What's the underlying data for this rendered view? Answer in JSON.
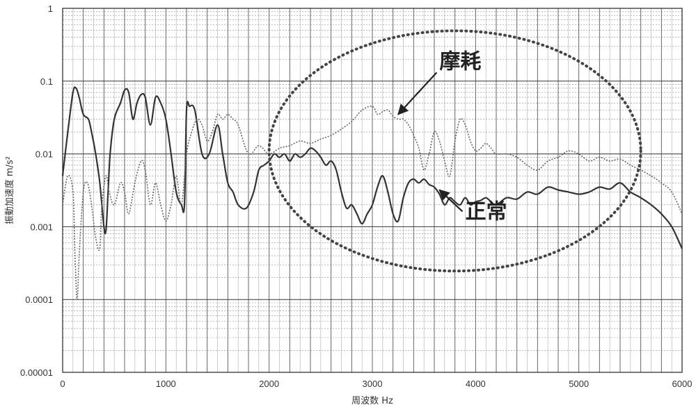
{
  "chart_data": {
    "type": "line",
    "xlabel": "周波数 Hz",
    "ylabel": "振動加速度 m/s²",
    "xlim": [
      0,
      6000
    ],
    "ylim": [
      1e-05,
      1
    ],
    "yscale": "log",
    "grid": true,
    "x_ticks": [
      "0",
      "1000",
      "2000",
      "3000",
      "4000",
      "5000",
      "6000"
    ],
    "y_ticks": [
      "0.00001",
      "0.0001",
      "0.001",
      "0.01",
      "0.1",
      "1"
    ],
    "annotations": [
      {
        "text": "摩耗",
        "target_series": "摩耗",
        "text_x": 3650,
        "text_y": 0.15,
        "arrow_x": 3250,
        "arrow_y": 0.035
      },
      {
        "text": "正常",
        "target_series": "正常",
        "text_x": 3900,
        "text_y": 0.0013,
        "arrow_x": 3650,
        "arrow_y": 0.0032
      }
    ],
    "highlight_ellipse": {
      "cx": 3800,
      "cy": 0.011,
      "rx": 1800,
      "ry_decades": 1.65
    },
    "series": [
      {
        "name": "正常",
        "style": "solid",
        "color": "#333333",
        "x": [
          0,
          50,
          100,
          130,
          160,
          200,
          250,
          280,
          320,
          360,
          400,
          420,
          440,
          460,
          500,
          560,
          600,
          640,
          680,
          720,
          760,
          800,
          850,
          900,
          950,
          1000,
          1050,
          1100,
          1150,
          1180,
          1200,
          1230,
          1280,
          1350,
          1420,
          1500,
          1550,
          1600,
          1650,
          1700,
          1780,
          1850,
          1900,
          1950,
          2000,
          2050,
          2100,
          2150,
          2200,
          2250,
          2300,
          2350,
          2400,
          2450,
          2500,
          2550,
          2600,
          2650,
          2700,
          2750,
          2800,
          2850,
          2900,
          2950,
          3000,
          3050,
          3100,
          3150,
          3200,
          3250,
          3300,
          3350,
          3400,
          3450,
          3500,
          3550,
          3600,
          3650,
          3700,
          3750,
          3800,
          3850,
          3900,
          3950,
          4000,
          4050,
          4100,
          4150,
          4200,
          4300,
          4400,
          4500,
          4600,
          4700,
          4800,
          4900,
          5000,
          5100,
          5200,
          5300,
          5400,
          5500,
          5600,
          5700,
          5800,
          5900,
          6000
        ],
        "values": [
          0.005,
          0.02,
          0.07,
          0.08,
          0.06,
          0.035,
          0.03,
          0.02,
          0.01,
          0.004,
          0.001,
          0.0009,
          0.003,
          0.01,
          0.03,
          0.05,
          0.075,
          0.07,
          0.03,
          0.05,
          0.065,
          0.06,
          0.025,
          0.06,
          0.05,
          0.03,
          0.01,
          0.003,
          0.002,
          0.002,
          0.04,
          0.045,
          0.04,
          0.01,
          0.01,
          0.025,
          0.01,
          0.004,
          0.003,
          0.002,
          0.0018,
          0.003,
          0.006,
          0.007,
          0.008,
          0.01,
          0.009,
          0.01,
          0.008,
          0.01,
          0.009,
          0.01,
          0.012,
          0.011,
          0.009,
          0.007,
          0.008,
          0.006,
          0.003,
          0.0018,
          0.002,
          0.0015,
          0.0011,
          0.0015,
          0.002,
          0.0035,
          0.005,
          0.003,
          0.0015,
          0.0012,
          0.0025,
          0.004,
          0.0045,
          0.004,
          0.0045,
          0.0038,
          0.0035,
          0.0028,
          0.002,
          0.0025,
          0.0022,
          0.002,
          0.0025,
          0.002,
          0.0022,
          0.0023,
          0.0025,
          0.0022,
          0.002,
          0.0025,
          0.0024,
          0.003,
          0.0028,
          0.0035,
          0.0032,
          0.003,
          0.0028,
          0.003,
          0.0035,
          0.0033,
          0.004,
          0.003,
          0.0025,
          0.002,
          0.0015,
          0.001,
          0.0005
        ]
      },
      {
        "name": "摩耗",
        "style": "dotted",
        "color": "#666666",
        "x": [
          0,
          50,
          100,
          120,
          140,
          160,
          200,
          240,
          280,
          320,
          360,
          380,
          420,
          450,
          500,
          560,
          600,
          640,
          700,
          760,
          800,
          850,
          900,
          950,
          1000,
          1050,
          1100,
          1150,
          1200,
          1250,
          1300,
          1350,
          1400,
          1450,
          1500,
          1550,
          1600,
          1650,
          1700,
          1800,
          1900,
          2000,
          2100,
          2200,
          2300,
          2400,
          2500,
          2600,
          2700,
          2800,
          2900,
          3000,
          3050,
          3100,
          3150,
          3200,
          3250,
          3300,
          3350,
          3400,
          3450,
          3500,
          3550,
          3600,
          3650,
          3700,
          3750,
          3800,
          3850,
          3900,
          3950,
          4000,
          4050,
          4100,
          4150,
          4200,
          4300,
          4400,
          4500,
          4600,
          4700,
          4800,
          4900,
          5000,
          5100,
          5200,
          5300,
          5400,
          5500,
          5600,
          5700,
          5800,
          5900,
          6000
        ],
        "values": [
          0.002,
          0.005,
          0.003,
          0.0004,
          0.0001,
          0.0004,
          0.003,
          0.004,
          0.002,
          0.0007,
          0.0005,
          0.002,
          0.005,
          0.003,
          0.002,
          0.004,
          0.003,
          0.0015,
          0.004,
          0.008,
          0.006,
          0.002,
          0.004,
          0.002,
          0.0012,
          0.002,
          0.005,
          0.002,
          0.01,
          0.02,
          0.03,
          0.025,
          0.015,
          0.02,
          0.035,
          0.03,
          0.035,
          0.03,
          0.025,
          0.01,
          0.013,
          0.01,
          0.012,
          0.013,
          0.015,
          0.014,
          0.016,
          0.018,
          0.022,
          0.028,
          0.04,
          0.045,
          0.035,
          0.038,
          0.04,
          0.033,
          0.03,
          0.03,
          0.025,
          0.018,
          0.012,
          0.006,
          0.01,
          0.02,
          0.015,
          0.008,
          0.005,
          0.015,
          0.03,
          0.025,
          0.015,
          0.011,
          0.012,
          0.014,
          0.012,
          0.01,
          0.01,
          0.009,
          0.007,
          0.006,
          0.008,
          0.009,
          0.011,
          0.01,
          0.008,
          0.009,
          0.008,
          0.0085,
          0.007,
          0.006,
          0.005,
          0.004,
          0.003,
          0.0015
        ]
      }
    ]
  }
}
